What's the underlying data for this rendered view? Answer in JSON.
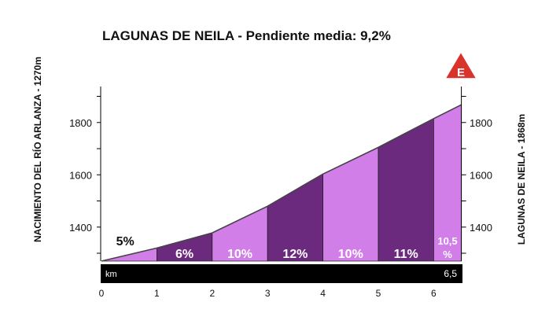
{
  "chart_data": {
    "type": "area",
    "title": "LAGUNAS DE NEILA - Pendiente media: 9,2%",
    "left_label": "NACIMIENTO DEL RÍO ARLANZA - 1270m",
    "right_label": "LAGUNAS DE NEILA - 1868m",
    "xlabel": "km",
    "x_end_label": "6,5",
    "xlim": [
      0,
      6.5
    ],
    "ylim": [
      1270,
      1930
    ],
    "x_ticks": [
      "0",
      "1",
      "2",
      "3",
      "4",
      "5",
      "6"
    ],
    "y_ticks": [
      "1400",
      "1600",
      "1800"
    ],
    "profile": {
      "km": [
        0,
        1,
        2,
        3,
        4,
        5,
        6,
        6.5
      ],
      "elevation_m": [
        1270,
        1320,
        1378,
        1480,
        1603,
        1705,
        1815,
        1868
      ]
    },
    "segments": [
      {
        "from": 0,
        "to": 1,
        "label": "5%",
        "shade": "light"
      },
      {
        "from": 1,
        "to": 2,
        "label": "6%",
        "shade": "dark"
      },
      {
        "from": 2,
        "to": 3,
        "label": "10%",
        "shade": "light"
      },
      {
        "from": 3,
        "to": 4,
        "label": "12%",
        "shade": "dark"
      },
      {
        "from": 4,
        "to": 5,
        "label": "10%",
        "shade": "light"
      },
      {
        "from": 5,
        "to": 6,
        "label": "11%",
        "shade": "dark"
      },
      {
        "from": 6,
        "to": 6.5,
        "label": "10,5 %",
        "shade": "light"
      }
    ],
    "colors": {
      "light": "#d17ee8",
      "dark": "#6b2a7e",
      "badge": "#d9342b"
    },
    "badge_letter": "E"
  }
}
